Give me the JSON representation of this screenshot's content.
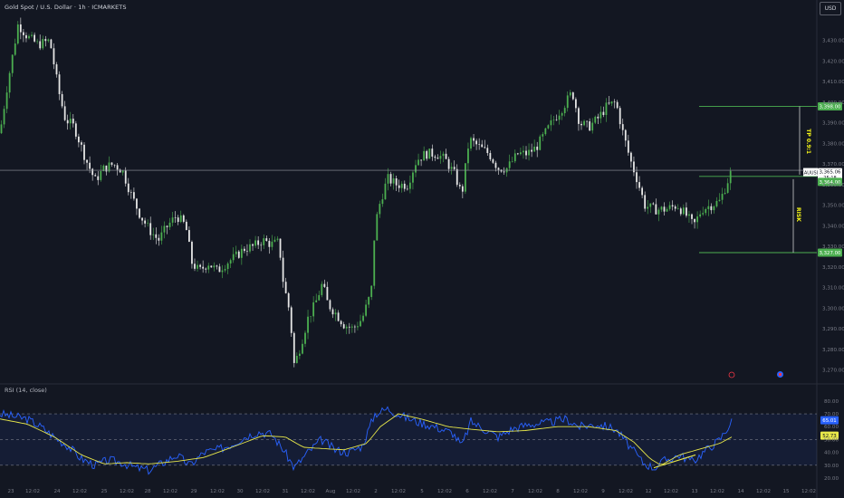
{
  "header": {
    "title": "Gold Spot / U.S. Dollar · 1h · ICMARKETS",
    "currency": "USD"
  },
  "colors": {
    "background": "#131722",
    "up_candle": "#4caf50",
    "down_candle": "#e6e6e6",
    "zone_line": "#4caf50",
    "tp_text": "#f5f518",
    "rsi_line": "#2962ff",
    "rsi_ma": "#e8e84a"
  },
  "chart_data": {
    "type": "candlestick",
    "symbol": "XAUUSD",
    "timeframe": "1h",
    "ylim": [
      3265,
      3440
    ],
    "y_ticks": [
      "3,430.00",
      "3,420.00",
      "3,410.00",
      "3,400.00",
      "3,390.00",
      "3,380.00",
      "3,370.00",
      "3,360.00",
      "3,350.00",
      "3,340.00",
      "3,330.00",
      "3,320.00",
      "3,310.00",
      "3,300.00",
      "3,290.00",
      "3,280.00",
      "3,270.00"
    ],
    "x_ticks": [
      "23",
      "12:02",
      "24",
      "12:02",
      "25",
      "12:02",
      "28",
      "12:02",
      "29",
      "12:02",
      "30",
      "12:02",
      "31",
      "12:02",
      "Aug",
      "12:02",
      "2",
      "12:02",
      "5",
      "12:02",
      "6",
      "12:02",
      "7",
      "12:02",
      "8",
      "12:02",
      "9",
      "12:02",
      "12",
      "12:02",
      "13",
      "12:02",
      "14",
      "12:02",
      "15",
      "12:02"
    ],
    "path_anchors": [
      {
        "x": 0,
        "y": 3385
      },
      {
        "x": 8,
        "y": 3408
      },
      {
        "x": 20,
        "y": 3438
      },
      {
        "x": 30,
        "y": 3432
      },
      {
        "x": 42,
        "y": 3428
      },
      {
        "x": 55,
        "y": 3430
      },
      {
        "x": 65,
        "y": 3405
      },
      {
        "x": 72,
        "y": 3392
      },
      {
        "x": 82,
        "y": 3388
      },
      {
        "x": 95,
        "y": 3372
      },
      {
        "x": 105,
        "y": 3362
      },
      {
        "x": 115,
        "y": 3368
      },
      {
        "x": 125,
        "y": 3370
      },
      {
        "x": 135,
        "y": 3367
      },
      {
        "x": 145,
        "y": 3355
      },
      {
        "x": 155,
        "y": 3345
      },
      {
        "x": 165,
        "y": 3338
      },
      {
        "x": 175,
        "y": 3333
      },
      {
        "x": 185,
        "y": 3340
      },
      {
        "x": 195,
        "y": 3345
      },
      {
        "x": 205,
        "y": 3340
      },
      {
        "x": 212,
        "y": 3322
      },
      {
        "x": 220,
        "y": 3318
      },
      {
        "x": 230,
        "y": 3322
      },
      {
        "x": 240,
        "y": 3318
      },
      {
        "x": 250,
        "y": 3322
      },
      {
        "x": 260,
        "y": 3325
      },
      {
        "x": 270,
        "y": 3329
      },
      {
        "x": 280,
        "y": 3330
      },
      {
        "x": 290,
        "y": 3333
      },
      {
        "x": 300,
        "y": 3331
      },
      {
        "x": 308,
        "y": 3332
      },
      {
        "x": 313,
        "y": 3312
      },
      {
        "x": 320,
        "y": 3298
      },
      {
        "x": 325,
        "y": 3272
      },
      {
        "x": 332,
        "y": 3282
      },
      {
        "x": 340,
        "y": 3295
      },
      {
        "x": 348,
        "y": 3302
      },
      {
        "x": 356,
        "y": 3312
      },
      {
        "x": 362,
        "y": 3302
      },
      {
        "x": 370,
        "y": 3298
      },
      {
        "x": 380,
        "y": 3292
      },
      {
        "x": 390,
        "y": 3290
      },
      {
        "x": 400,
        "y": 3295
      },
      {
        "x": 410,
        "y": 3308
      },
      {
        "x": 414,
        "y": 3340
      },
      {
        "x": 420,
        "y": 3352
      },
      {
        "x": 428,
        "y": 3363
      },
      {
        "x": 438,
        "y": 3360
      },
      {
        "x": 450,
        "y": 3360
      },
      {
        "x": 460,
        "y": 3372
      },
      {
        "x": 470,
        "y": 3375
      },
      {
        "x": 482,
        "y": 3375
      },
      {
        "x": 492,
        "y": 3372
      },
      {
        "x": 502,
        "y": 3365
      },
      {
        "x": 510,
        "y": 3355
      },
      {
        "x": 518,
        "y": 3382
      },
      {
        "x": 530,
        "y": 3378
      },
      {
        "x": 540,
        "y": 3375
      },
      {
        "x": 550,
        "y": 3368
      },
      {
        "x": 560,
        "y": 3368
      },
      {
        "x": 572,
        "y": 3375
      },
      {
        "x": 582,
        "y": 3375
      },
      {
        "x": 592,
        "y": 3378
      },
      {
        "x": 602,
        "y": 3385
      },
      {
        "x": 612,
        "y": 3392
      },
      {
        "x": 622,
        "y": 3398
      },
      {
        "x": 632,
        "y": 3405
      },
      {
        "x": 640,
        "y": 3390
      },
      {
        "x": 650,
        "y": 3388
      },
      {
        "x": 660,
        "y": 3392
      },
      {
        "x": 670,
        "y": 3398
      },
      {
        "x": 680,
        "y": 3400
      },
      {
        "x": 688,
        "y": 3385
      },
      {
        "x": 696,
        "y": 3372
      },
      {
        "x": 704,
        "y": 3362
      },
      {
        "x": 712,
        "y": 3350
      },
      {
        "x": 722,
        "y": 3348
      },
      {
        "x": 735,
        "y": 3348
      },
      {
        "x": 748,
        "y": 3350
      },
      {
        "x": 758,
        "y": 3345
      },
      {
        "x": 766,
        "y": 3340
      },
      {
        "x": 775,
        "y": 3348
      },
      {
        "x": 785,
        "y": 3350
      },
      {
        "x": 795,
        "y": 3352
      },
      {
        "x": 802,
        "y": 3360
      },
      {
        "x": 808,
        "y": 3367
      }
    ],
    "current_price": {
      "symbol": "XAUUSD",
      "value": "3,365.06",
      "timer": "25:18",
      "level": 3365
    },
    "horizontal_line": 3367,
    "tp_line": {
      "value": "3,398.00",
      "level": 3398
    },
    "entry_line": {
      "value": "3,364.00",
      "level": 3364
    },
    "sl_line": {
      "value": "3,327.00",
      "level": 3327
    },
    "tp_label": "TP 0.9:1",
    "risk_label": "RISK",
    "rsi": {
      "label": "RSI (14, close)",
      "ylim": [
        20,
        82
      ],
      "y_ticks": [
        "80.00",
        "70.00",
        "60.00",
        "50.00",
        "40.00",
        "30.00",
        "20.00"
      ],
      "bands": {
        "upper": 70,
        "middle": 50,
        "lower": 30
      },
      "value": "65.01",
      "ma_value": "52.73",
      "anchors": [
        {
          "x": 0,
          "y": 70
        },
        {
          "x": 15,
          "y": 68
        },
        {
          "x": 30,
          "y": 66
        },
        {
          "x": 45,
          "y": 60
        },
        {
          "x": 60,
          "y": 52
        },
        {
          "x": 75,
          "y": 45
        },
        {
          "x": 90,
          "y": 35
        },
        {
          "x": 105,
          "y": 30
        },
        {
          "x": 120,
          "y": 34
        },
        {
          "x": 135,
          "y": 32
        },
        {
          "x": 150,
          "y": 28
        },
        {
          "x": 165,
          "y": 26
        },
        {
          "x": 180,
          "y": 32
        },
        {
          "x": 195,
          "y": 38
        },
        {
          "x": 210,
          "y": 30
        },
        {
          "x": 225,
          "y": 40
        },
        {
          "x": 240,
          "y": 42
        },
        {
          "x": 255,
          "y": 46
        },
        {
          "x": 270,
          "y": 52
        },
        {
          "x": 285,
          "y": 56
        },
        {
          "x": 300,
          "y": 54
        },
        {
          "x": 313,
          "y": 42
        },
        {
          "x": 325,
          "y": 28
        },
        {
          "x": 340,
          "y": 40
        },
        {
          "x": 355,
          "y": 50
        },
        {
          "x": 370,
          "y": 42
        },
        {
          "x": 385,
          "y": 40
        },
        {
          "x": 400,
          "y": 45
        },
        {
          "x": 414,
          "y": 70
        },
        {
          "x": 428,
          "y": 74
        },
        {
          "x": 445,
          "y": 68
        },
        {
          "x": 460,
          "y": 64
        },
        {
          "x": 480,
          "y": 60
        },
        {
          "x": 500,
          "y": 55
        },
        {
          "x": 510,
          "y": 45
        },
        {
          "x": 520,
          "y": 64
        },
        {
          "x": 535,
          "y": 58
        },
        {
          "x": 550,
          "y": 52
        },
        {
          "x": 565,
          "y": 58
        },
        {
          "x": 585,
          "y": 62
        },
        {
          "x": 605,
          "y": 63
        },
        {
          "x": 625,
          "y": 66
        },
        {
          "x": 640,
          "y": 60
        },
        {
          "x": 660,
          "y": 62
        },
        {
          "x": 680,
          "y": 58
        },
        {
          "x": 695,
          "y": 45
        },
        {
          "x": 710,
          "y": 32
        },
        {
          "x": 722,
          "y": 28
        },
        {
          "x": 735,
          "y": 34
        },
        {
          "x": 750,
          "y": 38
        },
        {
          "x": 765,
          "y": 33
        },
        {
          "x": 780,
          "y": 42
        },
        {
          "x": 795,
          "y": 50
        },
        {
          "x": 808,
          "y": 64
        }
      ],
      "ma_anchors": [
        {
          "x": 0,
          "y": 66
        },
        {
          "x": 30,
          "y": 62
        },
        {
          "x": 60,
          "y": 52
        },
        {
          "x": 90,
          "y": 38
        },
        {
          "x": 115,
          "y": 31
        },
        {
          "x": 140,
          "y": 32
        },
        {
          "x": 165,
          "y": 31
        },
        {
          "x": 195,
          "y": 33
        },
        {
          "x": 225,
          "y": 36
        },
        {
          "x": 260,
          "y": 45
        },
        {
          "x": 290,
          "y": 53
        },
        {
          "x": 315,
          "y": 52
        },
        {
          "x": 335,
          "y": 44
        },
        {
          "x": 355,
          "y": 43
        },
        {
          "x": 380,
          "y": 42
        },
        {
          "x": 405,
          "y": 47
        },
        {
          "x": 420,
          "y": 60
        },
        {
          "x": 440,
          "y": 70
        },
        {
          "x": 465,
          "y": 66
        },
        {
          "x": 495,
          "y": 60
        },
        {
          "x": 520,
          "y": 58
        },
        {
          "x": 550,
          "y": 56
        },
        {
          "x": 580,
          "y": 57
        },
        {
          "x": 615,
          "y": 60
        },
        {
          "x": 650,
          "y": 60
        },
        {
          "x": 680,
          "y": 57
        },
        {
          "x": 700,
          "y": 48
        },
        {
          "x": 718,
          "y": 35
        },
        {
          "x": 730,
          "y": 30
        },
        {
          "x": 750,
          "y": 38
        },
        {
          "x": 770,
          "y": 42
        },
        {
          "x": 795,
          "y": 47
        },
        {
          "x": 808,
          "y": 52
        }
      ],
      "trendline": {
        "from": {
          "x": 722,
          "y": 28
        },
        "to": {
          "x": 768,
          "y": 38
        }
      }
    }
  }
}
